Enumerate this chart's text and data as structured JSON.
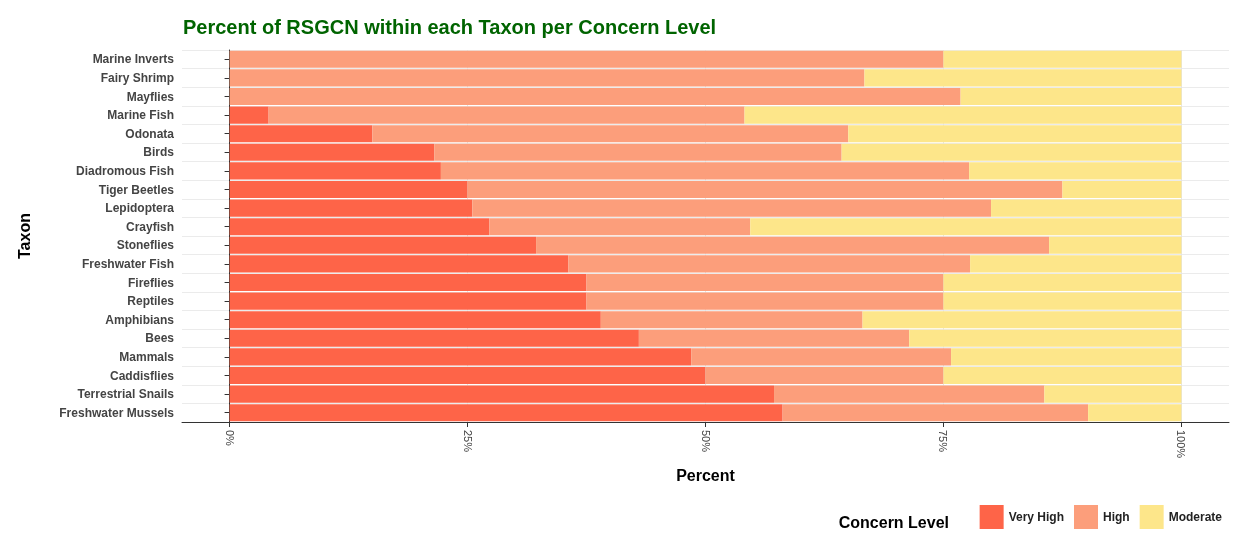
{
  "chart_data": {
    "type": "bar",
    "orientation": "horizontal",
    "stacked": true,
    "title": "Percent of RSGCN within each Taxon per Concern Level",
    "xlabel": "Percent",
    "ylabel": "Taxon",
    "legend_title": "Concern Level",
    "legend": "bottom right",
    "grid": true,
    "categories": [
      "Marine Inverts",
      "Fairy Shrimp",
      "Mayflies",
      "Marine Fish",
      "Odonata",
      "Birds",
      "Diadromous Fish",
      "Tiger Beetles",
      "Lepidoptera",
      "Crayfish",
      "Stoneflies",
      "Freshwater Fish",
      "Fireflies",
      "Reptiles",
      "Amphibians",
      "Bees",
      "Mammals",
      "Caddisflies",
      "Terrestrial Snails",
      "Freshwater Mussels"
    ],
    "xlim": [
      -5,
      105
    ],
    "xticks": [
      {
        "value": 0,
        "label": "0%"
      },
      {
        "value": 25,
        "label": "25%"
      },
      {
        "value": 50,
        "label": "50%"
      },
      {
        "value": 75,
        "label": "75%"
      },
      {
        "value": 100,
        "label": "100%"
      }
    ],
    "series": [
      {
        "name": "Very High",
        "color": "#fe6448",
        "values": [
          0,
          0,
          0,
          4.1,
          15,
          21.5,
          22.2,
          25,
          25.5,
          27.3,
          32.2,
          35.6,
          37.5,
          37.5,
          39,
          43,
          48.5,
          50,
          57.2,
          58.1
        ]
      },
      {
        "name": "High",
        "color": "#fc9e7b",
        "values": [
          75,
          66.7,
          76.8,
          50,
          50,
          42.8,
          55.5,
          62.5,
          54.5,
          27.4,
          53.9,
          42.2,
          37.5,
          37.5,
          27.5,
          28.4,
          27.3,
          25,
          28.4,
          32.1
        ]
      },
      {
        "name": "Moderate",
        "color": "#fde68a",
        "values": [
          25,
          33.3,
          23.2,
          45.9,
          35,
          35.7,
          22.3,
          12.5,
          20,
          45.3,
          13.9,
          22.2,
          25,
          25,
          33.5,
          28.6,
          24.2,
          25,
          14.4,
          9.8
        ]
      }
    ]
  }
}
